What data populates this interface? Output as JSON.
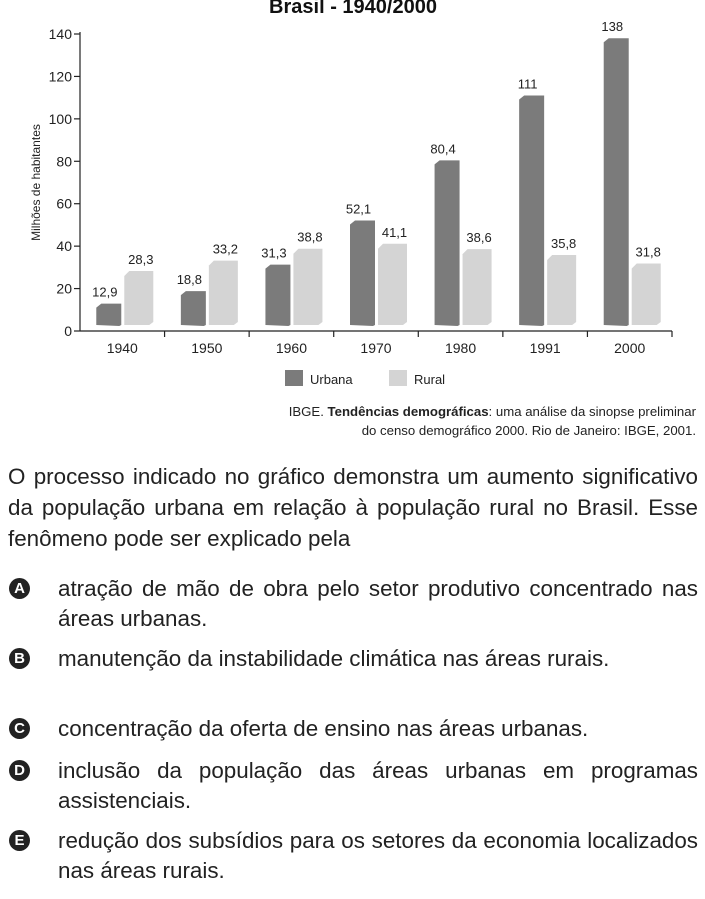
{
  "chart_data": {
    "type": "bar",
    "title": "Brasil - 1940/2000",
    "ylabel": "Milhões de habitantes",
    "xlabel": "",
    "categories": [
      "1940",
      "1950",
      "1960",
      "1970",
      "1980",
      "1991",
      "2000"
    ],
    "series": [
      {
        "name": "Urbana",
        "values": [
          12.9,
          18.8,
          31.3,
          52.1,
          80.4,
          111,
          138
        ],
        "labels": [
          "12,9",
          "18,8",
          "31,3",
          "52,1",
          "80,4",
          "111",
          "138"
        ],
        "color": "#7b7b7b"
      },
      {
        "name": "Rural",
        "values": [
          28.3,
          33.2,
          38.8,
          41.1,
          38.6,
          35.8,
          31.8
        ],
        "labels": [
          "28,3",
          "33,2",
          "38,8",
          "41,1",
          "38,6",
          "35,8",
          "31,8"
        ],
        "color": "#d4d4d4"
      }
    ],
    "ylim": [
      0,
      140
    ],
    "yticks": [
      0,
      20,
      40,
      60,
      80,
      100,
      120,
      140
    ],
    "grid": false,
    "legend": "bottom"
  },
  "source": {
    "prefix": "IBGE. ",
    "bold": "Tendências demográficas",
    "line1_rest": ": uma análise da sinopse preliminar",
    "line2": "do censo demográfico 2000. Rio de Janeiro: IBGE, 2001."
  },
  "question": {
    "text": "O processo indicado no gráfico demonstra um aumento significativo da população urbana em relação à população rural no Brasil. Esse fenômeno pode ser explicado pela"
  },
  "options": [
    {
      "letter": "A",
      "text": "atração de mão de obra pelo setor produtivo concentrado nas áreas urbanas."
    },
    {
      "letter": "B",
      "text": "manutenção da instabilidade climática nas áreas rurais."
    },
    {
      "letter": "C",
      "text": "concentração da oferta de ensino nas áreas urbanas."
    },
    {
      "letter": "D",
      "text": "inclusão da população das áreas urbanas em programas assistenciais."
    },
    {
      "letter": "E",
      "text": "redução dos subsídios para os setores da economia localizados nas áreas rurais."
    }
  ]
}
